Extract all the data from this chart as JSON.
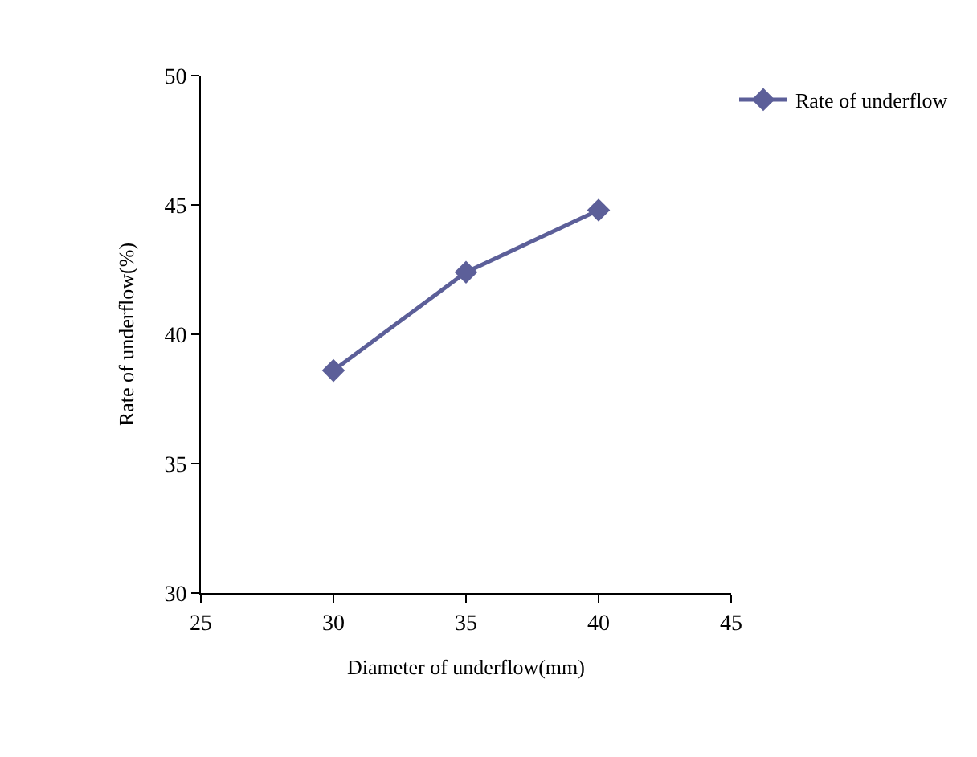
{
  "chart_data": {
    "type": "line",
    "xlabel": "Diameter of underflow(mm)",
    "ylabel": "Rate of underflow(%)",
    "x": [
      30,
      35,
      40
    ],
    "series": [
      {
        "name": "Rate of underflow",
        "color": "#5c5f99",
        "values": [
          38.6,
          42.4,
          44.8
        ]
      }
    ],
    "xlim": [
      25,
      45
    ],
    "xticks": [
      25,
      30,
      35,
      40,
      45
    ],
    "ylim": [
      30,
      50
    ],
    "yticks": [
      30,
      35,
      40,
      45,
      50
    ],
    "legend": "top right",
    "marker": "diamond",
    "line_style": "solid"
  }
}
